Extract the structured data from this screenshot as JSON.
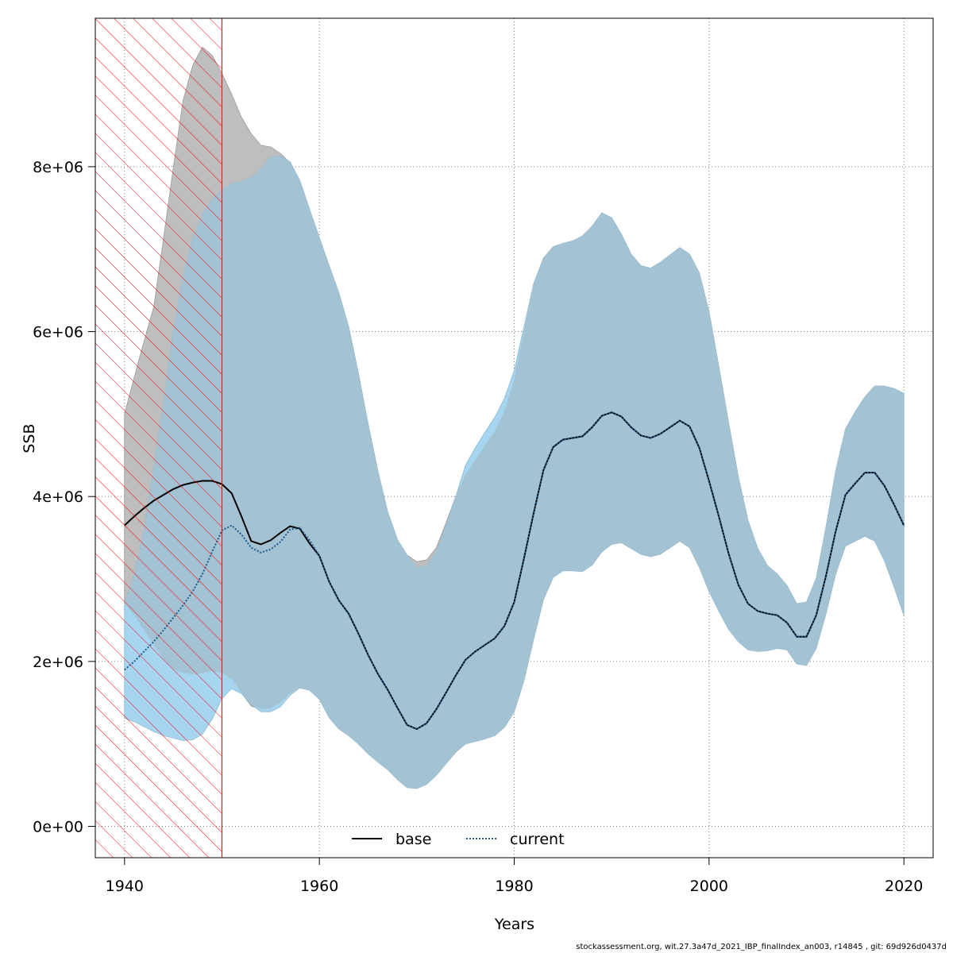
{
  "chart_data": {
    "type": "area",
    "xlabel": "Years",
    "ylabel": "SSB",
    "xlim": [
      1937,
      2023
    ],
    "ylim": [
      -380000,
      9800000
    ],
    "x_ticks": [
      1940,
      1960,
      1980,
      2000,
      2020
    ],
    "y_ticks": [
      0,
      2000000,
      4000000,
      6000000,
      8000000
    ],
    "y_tick_labels": [
      "0e+00",
      "2e+06",
      "4e+06",
      "6e+06",
      "8e+06"
    ],
    "grid": true,
    "legend_position": "bottom-center",
    "shaded_period": {
      "from": 1937,
      "to": 1950,
      "hatch_color": "#ff0000"
    },
    "colors": {
      "base_band": "#bebebe",
      "current_band": "#a6d5f2",
      "overlap_band": "#a3c2d4",
      "base_line": "#000000",
      "current_line": "#1c5b8c",
      "hatch": "#ff0000",
      "grid": "#7f7f7f"
    },
    "series": [
      {
        "name": "base",
        "line_style": "solid",
        "x": [
          1940,
          1941,
          1942,
          1943,
          1944,
          1945,
          1946,
          1947,
          1948,
          1949,
          1950,
          1951,
          1952,
          1953,
          1954,
          1955,
          1956,
          1957,
          1958,
          1959,
          1960,
          1961,
          1962,
          1963,
          1964,
          1965,
          1966,
          1967,
          1968,
          1969,
          1970,
          1971,
          1972,
          1973,
          1974,
          1975,
          1976,
          1977,
          1978,
          1979,
          1980,
          1981,
          1982,
          1983,
          1984,
          1985,
          1986,
          1987,
          1988,
          1989,
          1990,
          1991,
          1992,
          1993,
          1994,
          1995,
          1996,
          1997,
          1998,
          1999,
          2000,
          2001,
          2002,
          2003,
          2004,
          2005,
          2006,
          2007,
          2008,
          2009,
          2010,
          2011,
          2012,
          2013,
          2014,
          2015,
          2016,
          2017,
          2018,
          2019,
          2020
        ],
        "values": [
          3650000,
          3760000,
          3860000,
          3950000,
          4020000,
          4090000,
          4140000,
          4170000,
          4190000,
          4190000,
          4150000,
          4040000,
          3760000,
          3460000,
          3420000,
          3470000,
          3560000,
          3640000,
          3610000,
          3430000,
          3280000,
          2970000,
          2740000,
          2580000,
          2340000,
          2080000,
          1850000,
          1660000,
          1440000,
          1230000,
          1180000,
          1250000,
          1420000,
          1620000,
          1830000,
          2020000,
          2120000,
          2200000,
          2280000,
          2430000,
          2720000,
          3250000,
          3800000,
          4320000,
          4600000,
          4690000,
          4710000,
          4730000,
          4840000,
          4980000,
          5020000,
          4970000,
          4840000,
          4740000,
          4710000,
          4760000,
          4840000,
          4920000,
          4850000,
          4590000,
          4190000,
          3760000,
          3310000,
          2930000,
          2700000,
          2610000,
          2580000,
          2560000,
          2470000,
          2300000,
          2300000,
          2560000,
          3040000,
          3580000,
          4020000,
          4160000,
          4290000,
          4290000,
          4130000,
          3900000,
          3650000
        ],
        "lower": [
          2700000,
          2560000,
          2380000,
          2200000,
          2030000,
          1910000,
          1860000,
          1840000,
          1860000,
          1880000,
          1860000,
          1790000,
          1620000,
          1460000,
          1420000,
          1430000,
          1500000,
          1610000,
          1680000,
          1650000,
          1540000,
          1320000,
          1180000,
          1100000,
          1000000,
          880000,
          780000,
          690000,
          570000,
          470000,
          460000,
          510000,
          620000,
          760000,
          900000,
          1000000,
          1030000,
          1060000,
          1100000,
          1200000,
          1390000,
          1770000,
          2270000,
          2750000,
          3020000,
          3100000,
          3100000,
          3090000,
          3170000,
          3330000,
          3420000,
          3440000,
          3370000,
          3300000,
          3270000,
          3300000,
          3380000,
          3460000,
          3380000,
          3140000,
          2850000,
          2610000,
          2390000,
          2240000,
          2140000,
          2120000,
          2130000,
          2160000,
          2140000,
          1970000,
          1950000,
          2160000,
          2580000,
          3060000,
          3400000,
          3460000,
          3520000,
          3460000,
          3220000,
          2900000,
          2560000
        ],
        "upper": [
          5000000,
          5450000,
          5880000,
          6300000,
          7130000,
          7980000,
          8800000,
          9230000,
          9450000,
          9350000,
          9130000,
          8880000,
          8600000,
          8400000,
          8260000,
          8240000,
          8160000,
          8050000,
          7830000,
          7480000,
          7140000,
          6800000,
          6470000,
          6060000,
          5500000,
          4880000,
          4310000,
          3820000,
          3480000,
          3290000,
          3210000,
          3230000,
          3380000,
          3680000,
          4000000,
          4270000,
          4440000,
          4620000,
          4790000,
          5040000,
          5420000,
          6000000,
          6580000,
          6890000,
          7030000,
          7070000,
          7100000,
          7160000,
          7280000,
          7440000,
          7380000,
          7180000,
          6940000,
          6800000,
          6770000,
          6840000,
          6930000,
          7020000,
          6940000,
          6710000,
          6240000,
          5580000,
          4900000,
          4240000,
          3710000,
          3370000,
          3160000,
          3060000,
          2920000,
          2700000,
          2720000,
          3010000,
          3630000,
          4310000,
          4820000,
          5030000,
          5210000,
          5340000,
          5340000,
          5310000,
          5250000
        ]
      },
      {
        "name": "current",
        "line_style": "dotted",
        "x": [
          1940,
          1941,
          1942,
          1943,
          1944,
          1945,
          1946,
          1947,
          1948,
          1949,
          1950,
          1951,
          1952,
          1953,
          1954,
          1955,
          1956,
          1957,
          1958,
          1959,
          1960,
          1961,
          1962,
          1963,
          1964,
          1965,
          1966,
          1967,
          1968,
          1969,
          1970,
          1971,
          1972,
          1973,
          1974,
          1975,
          1976,
          1977,
          1978,
          1979,
          1980,
          1981,
          1982,
          1983,
          1984,
          1985,
          1986,
          1987,
          1988,
          1989,
          1990,
          1991,
          1992,
          1993,
          1994,
          1995,
          1996,
          1997,
          1998,
          1999,
          2000,
          2001,
          2002,
          2003,
          2004,
          2005,
          2006,
          2007,
          2008,
          2009,
          2010,
          2011,
          2012,
          2013,
          2014,
          2015,
          2016,
          2017,
          2018,
          2019,
          2020
        ],
        "values": [
          1900000,
          2000000,
          2120000,
          2240000,
          2380000,
          2530000,
          2680000,
          2850000,
          3060000,
          3330000,
          3590000,
          3650000,
          3540000,
          3380000,
          3320000,
          3360000,
          3450000,
          3600000,
          3620000,
          3470000,
          3280000,
          2970000,
          2740000,
          2580000,
          2340000,
          2080000,
          1850000,
          1660000,
          1440000,
          1230000,
          1180000,
          1250000,
          1420000,
          1620000,
          1830000,
          2020000,
          2120000,
          2200000,
          2280000,
          2430000,
          2720000,
          3250000,
          3800000,
          4320000,
          4600000,
          4690000,
          4710000,
          4730000,
          4840000,
          4980000,
          5020000,
          4970000,
          4840000,
          4740000,
          4710000,
          4760000,
          4840000,
          4920000,
          4850000,
          4590000,
          4190000,
          3760000,
          3310000,
          2930000,
          2700000,
          2610000,
          2580000,
          2560000,
          2470000,
          2300000,
          2300000,
          2560000,
          3040000,
          3580000,
          4020000,
          4160000,
          4290000,
          4290000,
          4130000,
          3900000,
          3650000
        ],
        "lower": [
          1310000,
          1270000,
          1210000,
          1150000,
          1100000,
          1070000,
          1040000,
          1050000,
          1120000,
          1300000,
          1550000,
          1670000,
          1610000,
          1480000,
          1390000,
          1390000,
          1450000,
          1590000,
          1680000,
          1650000,
          1540000,
          1320000,
          1180000,
          1100000,
          1000000,
          880000,
          780000,
          690000,
          570000,
          470000,
          460000,
          510000,
          620000,
          760000,
          900000,
          1000000,
          1030000,
          1060000,
          1100000,
          1200000,
          1390000,
          1770000,
          2270000,
          2750000,
          3020000,
          3100000,
          3100000,
          3090000,
          3170000,
          3330000,
          3420000,
          3440000,
          3370000,
          3300000,
          3270000,
          3300000,
          3380000,
          3460000,
          3380000,
          3140000,
          2850000,
          2610000,
          2390000,
          2240000,
          2140000,
          2120000,
          2130000,
          2160000,
          2140000,
          1970000,
          1950000,
          2160000,
          2580000,
          3060000,
          3400000,
          3460000,
          3520000,
          3460000,
          3220000,
          2900000,
          2560000
        ],
        "upper": [
          2700000,
          3060000,
          3580000,
          4350000,
          5130000,
          5990000,
          6660000,
          7130000,
          7420000,
          7600000,
          7720000,
          7790000,
          7820000,
          7870000,
          7970000,
          8120000,
          8130000,
          8060000,
          7830000,
          7480000,
          7140000,
          6800000,
          6470000,
          6060000,
          5500000,
          4880000,
          4310000,
          3820000,
          3480000,
          3290000,
          3140000,
          3160000,
          3330000,
          3650000,
          4000000,
          4380000,
          4590000,
          4780000,
          4960000,
          5190000,
          5530000,
          6060000,
          6580000,
          6890000,
          7030000,
          7070000,
          7100000,
          7160000,
          7280000,
          7440000,
          7380000,
          7180000,
          6940000,
          6800000,
          6770000,
          6840000,
          6930000,
          7020000,
          6940000,
          6710000,
          6240000,
          5580000,
          4900000,
          4240000,
          3710000,
          3370000,
          3160000,
          3060000,
          2920000,
          2700000,
          2720000,
          3010000,
          3630000,
          4310000,
          4820000,
          5030000,
          5210000,
          5340000,
          5340000,
          5310000,
          5250000
        ]
      }
    ]
  },
  "footer": "stockassessment.org, wit.27.3a47d_2021_IBP_finalIndex_an003, r14845 , git: 69d926d0437d"
}
